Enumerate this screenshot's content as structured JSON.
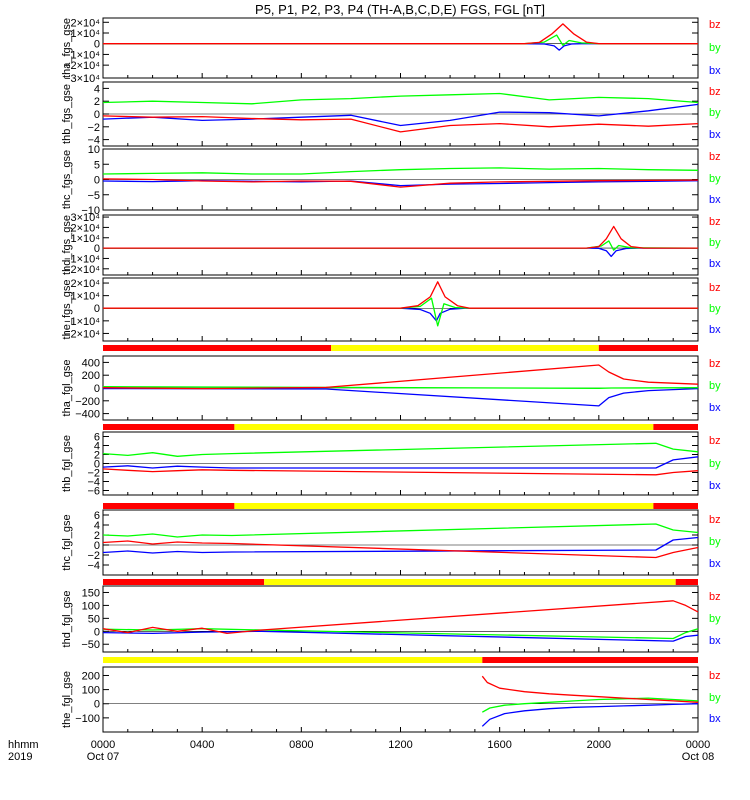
{
  "title": "P5, P1, P2, P3, P4 (TH-A,B,C,D,E) FGS, FGL [nT]",
  "colors": {
    "bx": "#0000ff",
    "by": "#00ff00",
    "bz": "#ff0000",
    "avail_yes": "#ffff00",
    "avail_no": "#ff0000"
  },
  "xaxis": {
    "range_hours": [
      0,
      24
    ],
    "ticks": [
      0,
      4,
      8,
      12,
      16,
      20,
      24
    ],
    "tick_labels": [
      "0000",
      "0400",
      "0800",
      "1200",
      "1600",
      "2000",
      "0000"
    ],
    "date_labels": [
      {
        "at": 0,
        "text": "Oct 07"
      },
      {
        "at": 24,
        "text": "Oct 08"
      }
    ],
    "left_label_top": "hhmm",
    "left_label_bottom": "2019"
  },
  "chart_data": [
    {
      "type": "line",
      "ylabel": "tha_fgs_gse",
      "ylim": [
        -32000,
        24000
      ],
      "yticks": [
        -20000,
        -10000,
        0,
        10000,
        20000
      ],
      "ytick_labels": [
        "−2×10⁴",
        "−1×10⁴",
        "0",
        "1×10⁴",
        "2×10⁴"
      ],
      "partial_label": "−3×10⁴",
      "series": [
        {
          "name": "bx",
          "x": [
            0,
            17.0,
            17.8,
            18.2,
            18.4,
            18.6,
            18.9,
            19.3,
            20.0,
            24
          ],
          "y": [
            0,
            0,
            -300,
            -2000,
            -6000,
            -2000,
            -300,
            0,
            0,
            0
          ]
        },
        {
          "name": "by",
          "x": [
            0,
            17.0,
            17.8,
            18.3,
            18.55,
            18.8,
            19.3,
            20.0,
            24
          ],
          "y": [
            0,
            0,
            1500,
            8000,
            -1500,
            3000,
            800,
            0,
            0
          ]
        },
        {
          "name": "bz",
          "x": [
            0,
            17.0,
            17.6,
            18.1,
            18.55,
            19.0,
            19.5,
            20.0,
            24
          ],
          "y": [
            0,
            0,
            1200,
            9000,
            18500,
            9000,
            1500,
            0,
            0
          ]
        }
      ]
    },
    {
      "type": "line",
      "ylabel": "thb_fgs_gse",
      "ylim": [
        -5,
        5
      ],
      "yticks": [
        -4,
        -2,
        0,
        2,
        4
      ],
      "ytick_labels": [
        "−4",
        "−2",
        "0",
        "2",
        "4"
      ],
      "series": [
        {
          "name": "bx",
          "x": [
            0,
            2,
            4,
            6,
            8,
            10,
            12,
            14,
            16,
            18,
            20,
            22,
            24
          ],
          "y": [
            -0.8,
            -0.5,
            -1.0,
            -0.8,
            -0.5,
            -0.2,
            -1.8,
            -1.0,
            0.3,
            0.2,
            -0.3,
            0.5,
            1.5
          ]
        },
        {
          "name": "by",
          "x": [
            0,
            2,
            4,
            6,
            8,
            10,
            12,
            14,
            16,
            18,
            20,
            22,
            24
          ],
          "y": [
            1.8,
            2.0,
            1.8,
            1.6,
            2.2,
            2.4,
            2.8,
            3.0,
            3.2,
            2.2,
            2.6,
            2.4,
            1.8
          ]
        },
        {
          "name": "bz",
          "x": [
            0,
            2,
            4,
            6,
            8,
            10,
            12,
            14,
            16,
            18,
            20,
            22,
            24
          ],
          "y": [
            -0.3,
            -0.5,
            -0.4,
            -0.7,
            -0.9,
            -0.8,
            -2.8,
            -1.8,
            -1.5,
            -2.0,
            -1.6,
            -1.9,
            -1.5
          ]
        }
      ]
    },
    {
      "type": "line",
      "ylabel": "thc_fgs_gse",
      "ylim": [
        -10,
        10
      ],
      "yticks": [
        -5,
        0,
        5,
        10
      ],
      "ytick_labels": [
        "−5",
        "0",
        "5",
        "10"
      ],
      "partial_label": "−10",
      "series": [
        {
          "name": "bx",
          "x": [
            0,
            2,
            4,
            6,
            8,
            10,
            12,
            14,
            16,
            18,
            20,
            22,
            24
          ],
          "y": [
            -0.5,
            -0.7,
            -0.4,
            -0.6,
            -0.8,
            -0.5,
            -2.0,
            -1.5,
            -1.3,
            -1.0,
            -0.8,
            -0.6,
            -0.4
          ]
        },
        {
          "name": "by",
          "x": [
            0,
            2,
            4,
            6,
            8,
            10,
            12,
            14,
            16,
            18,
            20,
            22,
            24
          ],
          "y": [
            1.8,
            2.0,
            2.2,
            1.8,
            1.8,
            2.6,
            3.2,
            3.6,
            3.8,
            3.4,
            3.6,
            3.2,
            3.0
          ]
        },
        {
          "name": "bz",
          "x": [
            0,
            2,
            4,
            6,
            8,
            10,
            12,
            14,
            16,
            18,
            20,
            22,
            24
          ],
          "y": [
            0.2,
            0.0,
            -0.5,
            -0.8,
            -0.5,
            -0.6,
            -2.5,
            -1.2,
            -0.8,
            -0.6,
            -0.4,
            -0.3,
            -0.2
          ]
        }
      ]
    },
    {
      "type": "line",
      "ylabel": "thd_fgs_gse",
      "ylim": [
        -26000,
        32000
      ],
      "yticks": [
        -20000,
        -10000,
        0,
        10000,
        20000,
        30000
      ],
      "ytick_labels": [
        "−2×10⁴",
        "−1×10⁴",
        "0",
        "1×10⁴",
        "2×10⁴",
        "3×10⁴"
      ],
      "series": [
        {
          "name": "bx",
          "x": [
            0,
            19.5,
            20.0,
            20.3,
            20.5,
            20.7,
            21.1,
            21.6,
            24
          ],
          "y": [
            0,
            0,
            -300,
            -2500,
            -8000,
            -2500,
            -400,
            0,
            0
          ]
        },
        {
          "name": "by",
          "x": [
            0,
            19.5,
            20.1,
            20.4,
            20.6,
            20.8,
            21.3,
            24
          ],
          "y": [
            0,
            0,
            2000,
            7000,
            -2000,
            2500,
            300,
            0
          ]
        },
        {
          "name": "bz",
          "x": [
            0,
            19.5,
            20.0,
            20.3,
            20.6,
            20.9,
            21.3,
            21.8,
            24
          ],
          "y": [
            0,
            0,
            1500,
            9000,
            21000,
            9000,
            1500,
            0,
            0
          ]
        }
      ]
    },
    {
      "type": "line",
      "ylabel": "the_fgs_gse",
      "ylim": [
        -26000,
        24000
      ],
      "yticks": [
        -20000,
        -10000,
        0,
        10000,
        20000
      ],
      "ytick_labels": [
        "−2×10⁴",
        "−1×10⁴",
        "0",
        "1×10⁴",
        "2×10⁴"
      ],
      "series": [
        {
          "name": "bx",
          "x": [
            0,
            12.0,
            12.8,
            13.2,
            13.45,
            13.6,
            14.0,
            14.6,
            24
          ],
          "y": [
            0,
            0,
            -1000,
            -4000,
            -10000,
            -4000,
            -800,
            0,
            0
          ]
        },
        {
          "name": "by",
          "x": [
            0,
            12.0,
            12.8,
            13.25,
            13.5,
            13.75,
            14.2,
            14.8,
            24
          ],
          "y": [
            0,
            0,
            1500,
            8000,
            -14000,
            3500,
            600,
            0,
            0
          ]
        },
        {
          "name": "bz",
          "x": [
            0,
            12.0,
            12.7,
            13.2,
            13.5,
            13.8,
            14.3,
            14.8,
            24
          ],
          "y": [
            0,
            0,
            2000,
            9000,
            21000,
            9000,
            2000,
            0,
            0
          ]
        }
      ]
    },
    {
      "type": "line",
      "ylabel": "tha_fgl_gse",
      "ylim": [
        -500,
        500
      ],
      "yticks": [
        -400,
        -200,
        0,
        200,
        400
      ],
      "ytick_labels": [
        "−400",
        "−200",
        "0",
        "200",
        "400"
      ],
      "availability": [
        {
          "from": 0,
          "to": 9.2,
          "state": "no"
        },
        {
          "from": 9.2,
          "to": 20.0,
          "state": "yes"
        },
        {
          "from": 20.0,
          "to": 24,
          "state": "no"
        }
      ],
      "series": [
        {
          "name": "bx",
          "x": [
            0,
            9.0,
            20.0,
            20.4,
            21.0,
            22.0,
            24
          ],
          "y": [
            -10,
            -15,
            -280,
            -150,
            -80,
            -40,
            -10
          ]
        },
        {
          "name": "by",
          "x": [
            0,
            9.0,
            20.0,
            20.5,
            24
          ],
          "y": [
            20,
            10,
            -5,
            0,
            5
          ]
        },
        {
          "name": "bz",
          "x": [
            0,
            4,
            9.0,
            20.0,
            20.4,
            21.0,
            22.0,
            24
          ],
          "y": [
            5,
            -10,
            10,
            360,
            250,
            140,
            90,
            60
          ]
        }
      ]
    },
    {
      "type": "line",
      "ylabel": "thb_fgl_gse",
      "ylim": [
        -7,
        7
      ],
      "yticks": [
        -6,
        -4,
        -2,
        0,
        2,
        4,
        6
      ],
      "ytick_labels": [
        "−6",
        "−4",
        "−2",
        "0",
        "2",
        "4",
        "6"
      ],
      "availability": [
        {
          "from": 0,
          "to": 5.3,
          "state": "no"
        },
        {
          "from": 5.3,
          "to": 22.2,
          "state": "yes"
        },
        {
          "from": 22.2,
          "to": 24,
          "state": "no"
        }
      ],
      "series": [
        {
          "name": "bx",
          "x": [
            0,
            1,
            2,
            3,
            4,
            5.2,
            22.3,
            23,
            24
          ],
          "y": [
            -0.8,
            -0.5,
            -1.0,
            -0.6,
            -0.8,
            -1.0,
            -1.0,
            0.8,
            1.5
          ]
        },
        {
          "name": "by",
          "x": [
            0,
            1,
            2,
            3,
            4,
            5.2,
            22.3,
            23,
            24
          ],
          "y": [
            2.2,
            1.8,
            2.4,
            1.6,
            2.0,
            2.2,
            4.5,
            3.2,
            2.6
          ]
        },
        {
          "name": "bz",
          "x": [
            0,
            1,
            2,
            3,
            4,
            5.2,
            22.3,
            23,
            24
          ],
          "y": [
            -1.2,
            -1.5,
            -1.8,
            -1.6,
            -1.4,
            -1.5,
            -2.5,
            -2.0,
            -1.6
          ]
        }
      ]
    },
    {
      "type": "line",
      "ylabel": "thc_fgl_gse",
      "ylim": [
        -6,
        7
      ],
      "yticks": [
        -4,
        -2,
        0,
        2,
        4,
        6
      ],
      "ytick_labels": [
        "−4",
        "−2",
        "0",
        "2",
        "4",
        "6"
      ],
      "availability": [
        {
          "from": 0,
          "to": 5.3,
          "state": "no"
        },
        {
          "from": 5.3,
          "to": 22.2,
          "state": "yes"
        },
        {
          "from": 22.2,
          "to": 24,
          "state": "no"
        }
      ],
      "series": [
        {
          "name": "bx",
          "x": [
            0,
            1,
            2,
            3,
            4,
            5.2,
            22.3,
            23,
            24
          ],
          "y": [
            -1.5,
            -1.2,
            -1.6,
            -1.3,
            -1.5,
            -1.4,
            -1.0,
            1.0,
            1.5
          ]
        },
        {
          "name": "by",
          "x": [
            0,
            1,
            2,
            3,
            4,
            5.2,
            22.3,
            23,
            24
          ],
          "y": [
            2.0,
            1.8,
            2.2,
            1.6,
            2.0,
            1.9,
            4.2,
            3.0,
            2.5
          ]
        },
        {
          "name": "bz",
          "x": [
            0,
            1,
            2,
            3,
            4,
            5.2,
            22.3,
            23,
            24
          ],
          "y": [
            0.5,
            0.8,
            0.2,
            0.6,
            0.4,
            0.3,
            -2.5,
            -1.5,
            -0.5
          ]
        }
      ]
    },
    {
      "type": "line",
      "ylabel": "thd_fgl_gse",
      "ylim": [
        -80,
        175
      ],
      "yticks": [
        -50,
        0,
        50,
        100,
        150
      ],
      "ytick_labels": [
        "−50",
        "0",
        "50",
        "100",
        "150"
      ],
      "availability": [
        {
          "from": 0,
          "to": 6.5,
          "state": "no"
        },
        {
          "from": 6.5,
          "to": 23.1,
          "state": "yes"
        },
        {
          "from": 23.1,
          "to": 24,
          "state": "no"
        }
      ],
      "series": [
        {
          "name": "bx",
          "x": [
            0,
            2,
            4,
            6.4,
            23.0,
            23.5,
            24
          ],
          "y": [
            -5,
            -8,
            -3,
            0,
            -38,
            -20,
            -15
          ]
        },
        {
          "name": "by",
          "x": [
            0,
            2,
            4,
            6.4,
            23.0,
            23.5,
            24
          ],
          "y": [
            8,
            5,
            10,
            5,
            -28,
            -5,
            10
          ]
        },
        {
          "name": "bz",
          "x": [
            0,
            1,
            2,
            3,
            4,
            5,
            6.4,
            23.0,
            23.5,
            24
          ],
          "y": [
            10,
            -5,
            15,
            0,
            12,
            -8,
            5,
            118,
            100,
            75
          ]
        }
      ]
    },
    {
      "type": "line",
      "ylabel": "the_fgl_gse",
      "ylim": [
        -200,
        260
      ],
      "yticks": [
        -100,
        0,
        100,
        200
      ],
      "ytick_labels": [
        "−100",
        "0",
        "100",
        "200"
      ],
      "availability": [
        {
          "from": 0,
          "to": 15.3,
          "state": "yes"
        },
        {
          "from": 15.3,
          "to": 24,
          "state": "no"
        }
      ],
      "series": [
        {
          "name": "bx",
          "x": [
            15.3,
            15.6,
            16.2,
            17,
            18,
            19,
            20,
            21,
            22,
            23,
            24
          ],
          "y": [
            -160,
            -110,
            -70,
            -50,
            -35,
            -25,
            -20,
            -15,
            -10,
            -5,
            0
          ]
        },
        {
          "name": "by",
          "x": [
            15.3,
            15.6,
            16.2,
            17,
            18,
            19,
            20,
            21,
            22,
            23,
            24
          ],
          "y": [
            -60,
            -30,
            -10,
            0,
            10,
            20,
            30,
            35,
            40,
            30,
            20
          ]
        },
        {
          "name": "bz",
          "x": [
            15.3,
            15.5,
            16.0,
            17,
            18,
            19,
            20,
            21,
            22,
            23,
            24
          ],
          "y": [
            195,
            150,
            110,
            85,
            70,
            60,
            50,
            40,
            30,
            20,
            10
          ]
        }
      ]
    }
  ]
}
